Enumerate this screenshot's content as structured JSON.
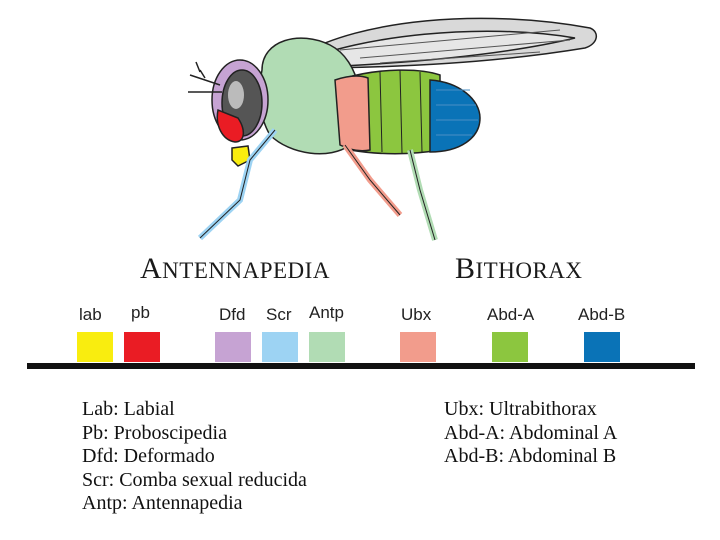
{
  "titles": {
    "antennapedia": {
      "first": "A",
      "rest": "NTENNAPEDIA"
    },
    "bithorax": {
      "first": "B",
      "rest": "ITHORAX"
    }
  },
  "genes": [
    {
      "label": "lab",
      "color": "#f9ed0f"
    },
    {
      "label": "pb",
      "color": "#ea1c24"
    },
    {
      "label": "Dfd",
      "color": "#c6a3d3"
    },
    {
      "label": "Scr",
      "color": "#9dd3f3"
    },
    {
      "label": "Antp",
      "color": "#b1dcb4"
    },
    {
      "label": "Ubx",
      "color": "#f29c8c"
    },
    {
      "label": "Abd-A",
      "color": "#8cc63f"
    },
    {
      "label": "Abd-B",
      "color": "#0a73b7"
    }
  ],
  "legend_left": [
    "Lab: Labial",
    "Pb: Proboscipedia",
    "Dfd: Deformado",
    "Scr: Comba sexual reducida",
    "Antp: Antennapedia"
  ],
  "legend_right": [
    "Ubx: Ultrabithorax",
    "Abd-A: Abdominal A",
    "Abd-B: Abdominal B"
  ],
  "fly_illustration": {
    "body_color": "#b1dcb4",
    "head_color": "#c6a3d3",
    "eye_color": "#555555",
    "abdomen_colors": [
      "#8cc63f",
      "#0a73b7"
    ],
    "wing_color": "#d9d9d9"
  }
}
